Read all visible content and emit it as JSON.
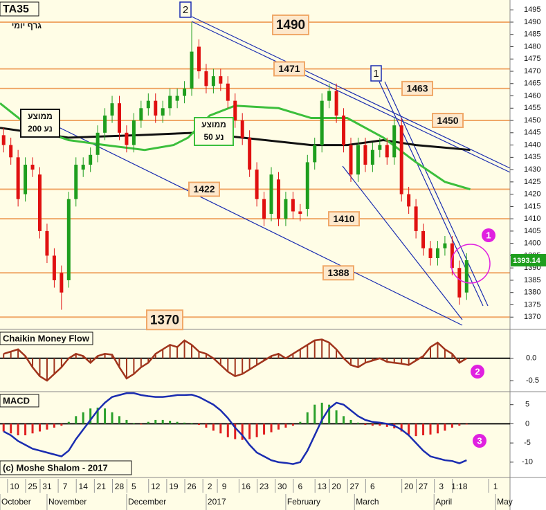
{
  "chart_data": [
    {
      "type": "candlestick",
      "title": "TA35",
      "subtitle": "גרף יומי",
      "x": [
        1,
        3,
        5,
        7,
        9,
        11,
        13,
        15,
        17,
        19,
        21,
        23,
        25,
        27,
        29,
        31,
        33,
        35,
        37,
        39,
        41,
        43,
        45,
        47,
        49,
        51,
        53,
        55,
        57,
        59,
        61,
        63,
        65,
        67,
        69,
        71,
        73,
        75,
        77,
        79,
        81,
        83,
        85,
        87,
        89,
        91,
        93,
        95,
        97,
        99,
        101,
        103,
        105,
        107,
        109,
        111,
        113,
        115,
        117,
        119,
        121,
        123,
        125,
        127,
        129
      ],
      "open": [
        1444,
        1440,
        1435,
        1420,
        1432,
        1428,
        1405,
        1395,
        1388,
        1385,
        1418,
        1430,
        1432,
        1436,
        1445,
        1452,
        1457,
        1445,
        1440,
        1450,
        1455,
        1458,
        1452,
        1455,
        1458,
        1460,
        1463,
        1480,
        1470,
        1464,
        1468,
        1465,
        1458,
        1450,
        1443,
        1430,
        1418,
        1412,
        1426,
        1410,
        1418,
        1413,
        1414,
        1433,
        1440,
        1458,
        1462,
        1452,
        1440,
        1428,
        1440,
        1432,
        1438,
        1440,
        1435,
        1448,
        1420,
        1415,
        1405,
        1398,
        1394,
        1398,
        1400,
        1390,
        1380
      ],
      "high": [
        1447,
        1443,
        1438,
        1435,
        1435,
        1431,
        1408,
        1398,
        1391,
        1421,
        1435,
        1435,
        1439,
        1448,
        1455,
        1460,
        1460,
        1448,
        1453,
        1458,
        1461,
        1461,
        1458,
        1463,
        1463,
        1466,
        1490,
        1483,
        1473,
        1471,
        1471,
        1468,
        1461,
        1453,
        1446,
        1433,
        1421,
        1431,
        1429,
        1421,
        1421,
        1416,
        1436,
        1443,
        1461,
        1465,
        1465,
        1455,
        1443,
        1443,
        1443,
        1441,
        1443,
        1443,
        1451,
        1451,
        1423,
        1418,
        1408,
        1401,
        1401,
        1403,
        1403,
        1393,
        1396
      ],
      "low": [
        1437,
        1432,
        1415,
        1417,
        1427,
        1402,
        1392,
        1382,
        1373,
        1382,
        1415,
        1427,
        1429,
        1433,
        1442,
        1449,
        1442,
        1437,
        1437,
        1447,
        1452,
        1449,
        1449,
        1452,
        1455,
        1457,
        1460,
        1467,
        1461,
        1461,
        1462,
        1455,
        1447,
        1440,
        1427,
        1415,
        1407,
        1409,
        1407,
        1407,
        1410,
        1409,
        1411,
        1430,
        1437,
        1455,
        1449,
        1437,
        1425,
        1425,
        1429,
        1429,
        1435,
        1432,
        1432,
        1417,
        1412,
        1402,
        1395,
        1391,
        1391,
        1395,
        1387,
        1375,
        1377
      ],
      "close": [
        1440,
        1435,
        1418,
        1432,
        1430,
        1405,
        1395,
        1385,
        1380,
        1418,
        1432,
        1432,
        1436,
        1445,
        1452,
        1457,
        1445,
        1440,
        1450,
        1455,
        1458,
        1452,
        1455,
        1460,
        1460,
        1463,
        1478,
        1470,
        1464,
        1468,
        1465,
        1458,
        1450,
        1443,
        1430,
        1418,
        1410,
        1428,
        1410,
        1418,
        1413,
        1412,
        1433,
        1440,
        1458,
        1462,
        1452,
        1440,
        1428,
        1440,
        1432,
        1438,
        1440,
        1435,
        1448,
        1420,
        1415,
        1405,
        1398,
        1394,
        1398,
        1400,
        1390,
        1378,
        1393.14
      ],
      "up_color": "#1e9e1e",
      "down_color": "#e01010",
      "ylim": [
        1365,
        1499
      ],
      "yticks": [
        1370,
        1375,
        1380,
        1385,
        1390,
        1395,
        1400,
        1405,
        1410,
        1415,
        1420,
        1425,
        1430,
        1435,
        1440,
        1445,
        1450,
        1455,
        1460,
        1465,
        1470,
        1475,
        1480,
        1485,
        1490,
        1495
      ],
      "xlim": [
        0,
        141
      ],
      "xticks": [
        {
          "value": 4,
          "label": "10"
        },
        {
          "value": 9,
          "label": "25"
        },
        {
          "value": 13,
          "label": "31"
        },
        {
          "value": 18,
          "label": "7"
        },
        {
          "value": 23,
          "label": "14"
        },
        {
          "value": 28,
          "label": "21"
        },
        {
          "value": 33,
          "label": "28"
        },
        {
          "value": 37,
          "label": "5"
        },
        {
          "value": 43,
          "label": "12"
        },
        {
          "value": 48,
          "label": "19"
        },
        {
          "value": 53,
          "label": "26"
        },
        {
          "value": 58,
          "label": "2"
        },
        {
          "value": 62,
          "label": "9"
        },
        {
          "value": 68,
          "label": "16"
        },
        {
          "value": 73,
          "label": "23"
        },
        {
          "value": 78,
          "label": "30"
        },
        {
          "value": 83,
          "label": "6"
        },
        {
          "value": 89,
          "label": "13"
        },
        {
          "value": 93,
          "label": "20"
        },
        {
          "value": 98,
          "label": "27"
        },
        {
          "value": 103,
          "label": "6"
        },
        {
          "value": 113,
          "label": "20"
        },
        {
          "value": 117,
          "label": "27"
        },
        {
          "value": 122,
          "label": "3"
        },
        {
          "value": 127,
          "label": "1:18"
        },
        {
          "value": 137,
          "label": "1"
        }
      ],
      "month_ticks": [
        {
          "value": 0,
          "label": "October"
        },
        {
          "value": 13,
          "label": "November"
        },
        {
          "value": 35,
          "label": "December"
        },
        {
          "value": 57,
          "label": "2017"
        },
        {
          "value": 79,
          "label": "February"
        },
        {
          "value": 98,
          "label": "March"
        },
        {
          "value": 120,
          "label": "April"
        },
        {
          "value": 137,
          "label": "May"
        }
      ],
      "moving_averages": [
        {
          "label_lines": [
            "ממוצע",
            "נע 200"
          ],
          "color": "#111111",
          "x": [
            0,
            19,
            38,
            54,
            67,
            86,
            96,
            106,
            115,
            130
          ],
          "values": [
            1447,
            1443,
            1444,
            1445,
            1443,
            1440,
            1440,
            1442,
            1440,
            1438
          ]
        },
        {
          "label_lines": [
            "ממוצע",
            "נע 50"
          ],
          "color": "#3cbf3c",
          "x": [
            0,
            6,
            13,
            19,
            29,
            40,
            48,
            52,
            58,
            65,
            77,
            86,
            96,
            106,
            115,
            123,
            130
          ],
          "values": [
            1457,
            1450,
            1445,
            1442,
            1440,
            1438,
            1440,
            1443,
            1452,
            1456,
            1455,
            1451,
            1451,
            1443,
            1433,
            1425,
            1422
          ]
        }
      ],
      "levels": [
        1490,
        1471,
        1463,
        1450,
        1422,
        1410,
        1388,
        1370
      ],
      "level_color": "#f0a868",
      "trendline_labels": [
        "2",
        "1"
      ]
    },
    {
      "type": "histogram-line",
      "title": "Chaikin Money Flow",
      "color": "#a0341c",
      "values": [
        0.1,
        0.15,
        0.2,
        0.05,
        -0.2,
        -0.4,
        -0.5,
        -0.35,
        -0.2,
        0.0,
        0.1,
        0.05,
        -0.1,
        0.05,
        0.1,
        0.08,
        -0.2,
        -0.45,
        -0.35,
        -0.2,
        -0.1,
        0.1,
        0.2,
        0.3,
        0.25,
        0.4,
        0.3,
        0.15,
        0.1,
        0.0,
        -0.15,
        -0.3,
        -0.4,
        -0.35,
        -0.25,
        -0.15,
        -0.05,
        0.05,
        0.1,
        0.0,
        0.1,
        0.2,
        0.3,
        0.4,
        0.42,
        0.35,
        0.2,
        0.0,
        -0.15,
        -0.2,
        -0.1,
        -0.05,
        0.0,
        -0.08,
        -0.1,
        -0.12,
        -0.15,
        -0.05,
        0.05,
        0.25,
        0.35,
        0.2,
        0.1,
        -0.1,
        0.0
      ],
      "ylim": [
        -0.73,
        0.63
      ],
      "yticks": [
        {
          "value": 0,
          "label": "0.0"
        },
        {
          "value": -0.5,
          "label": "-0.5"
        }
      ]
    },
    {
      "type": "macd",
      "title": "MACD",
      "line_color": "#1a2cb0",
      "pos_color": "#2aa02a",
      "neg_color": "#e02020",
      "values": [
        -2,
        -3,
        -4.5,
        -5.5,
        -6.5,
        -7,
        -7.5,
        -8,
        -8.5,
        -7,
        -4,
        -1.5,
        1,
        3.5,
        5.5,
        7,
        7.5,
        8,
        8,
        7.5,
        7.2,
        7,
        7,
        7.2,
        7.5,
        7.5,
        7.6,
        7,
        6,
        5,
        3.5,
        1.5,
        -1,
        -3,
        -5.5,
        -7.5,
        -8.5,
        -9.5,
        -10,
        -10.2,
        -10.5,
        -10,
        -7,
        -3,
        1,
        4,
        5.5,
        5,
        3.5,
        2,
        1,
        0.5,
        0.3,
        0,
        -0.5,
        -1.5,
        -3,
        -5,
        -7,
        -8.5,
        -9,
        -9.5,
        -9.7,
        -10.3,
        -9.5
      ],
      "histogram": [
        -2,
        -2.5,
        -3,
        -3,
        -2.5,
        -2,
        -1.5,
        -1,
        -0.5,
        0.5,
        2,
        3,
        4,
        4.2,
        4,
        3,
        2,
        1,
        0.2,
        -0.2,
        0.5,
        1,
        1,
        0.8,
        0.5,
        0.3,
        0.2,
        -0.3,
        -1,
        -1.8,
        -2.5,
        -3.5,
        -4,
        -4.2,
        -4,
        -3.5,
        -2.8,
        -2.2,
        -1.5,
        -1,
        -0.5,
        0.5,
        3,
        5,
        5.5,
        5,
        3.5,
        2,
        1,
        0.3,
        -0.3,
        -0.5,
        -0.5,
        -0.8,
        -1.2,
        -2,
        -2.8,
        -3.2,
        -3,
        -2.8,
        -2.5,
        -1.8,
        -1,
        -0.5,
        -0.2
      ],
      "ylim": [
        -14,
        8.2
      ],
      "yticks": [
        5,
        0,
        -5,
        -10
      ],
      "footer": "(c) Moshe Shalom - 2017"
    }
  ],
  "callouts": [
    "1",
    "2",
    "3"
  ]
}
